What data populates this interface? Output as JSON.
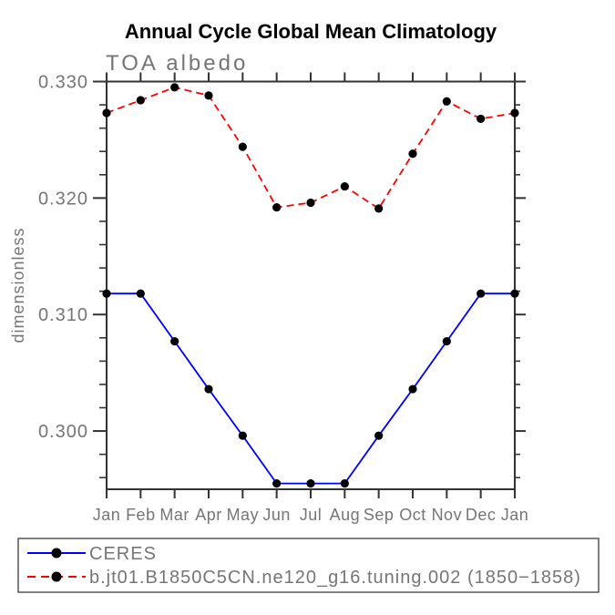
{
  "colors": {
    "axis": "#333333",
    "text_gray": "#757575",
    "title_text": "#000000",
    "marker": "#000000",
    "ceres_line": "#0000ff",
    "model_line": "#ff0000",
    "legend_border": "#555555",
    "background": "#ffffff"
  },
  "chart_data": {
    "type": "line",
    "title": "Annual Cycle Global Mean Climatology",
    "subtitle": "TOA albedo",
    "xlabel": "",
    "ylabel": "dimensionless",
    "categories": [
      "Jan",
      "Feb",
      "Mar",
      "Apr",
      "May",
      "Jun",
      "Jul",
      "Aug",
      "Sep",
      "Oct",
      "Nov",
      "Dec",
      "Jan"
    ],
    "ylim": [
      0.295,
      0.33
    ],
    "yticks_major": [
      0.3,
      0.31,
      0.32,
      0.33
    ],
    "ytick_labels": [
      "0.300",
      "0.310",
      "0.320",
      "0.330"
    ],
    "ytick_minor_step": 0.002,
    "grid": false,
    "marker": "black-filled-circle",
    "legend_position": "bottom-left",
    "series": [
      {
        "name": "CERES",
        "color": "#0000ff",
        "line_style": "solid",
        "values": [
          0.3118,
          0.3118,
          0.3077,
          0.3036,
          0.2996,
          0.2955,
          0.2955,
          0.2955,
          0.2996,
          0.3036,
          0.3077,
          0.3118,
          0.3118
        ]
      },
      {
        "name": "b.jt01.B1850C5CN.ne120_g16.tuning.002 (1850−1858)",
        "color": "#ff0000",
        "line_style": "dashed",
        "values": [
          0.3273,
          0.3284,
          0.3295,
          0.3288,
          0.3244,
          0.3192,
          0.3196,
          0.321,
          0.3191,
          0.3238,
          0.3283,
          0.3268,
          0.3273
        ]
      }
    ]
  }
}
